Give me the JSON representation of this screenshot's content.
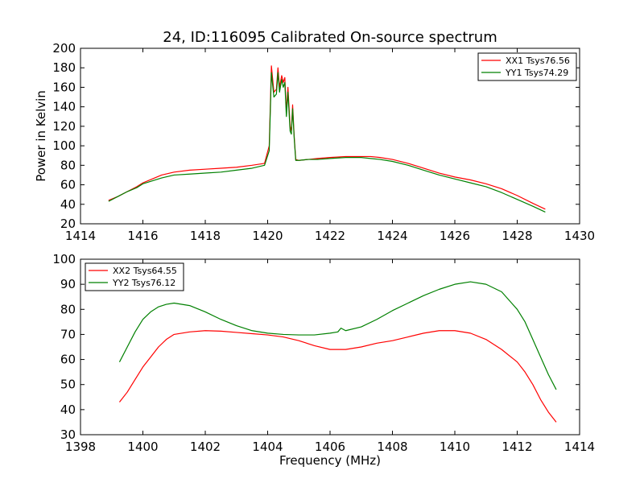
{
  "chart_data": [
    {
      "type": "line",
      "title": "24, ID:116095 Calibrated On-source spectrum",
      "xlabel": "",
      "ylabel": "Power in Kelvin",
      "xlim": [
        1414,
        1430
      ],
      "ylim": [
        20,
        200
      ],
      "xticks": [
        1414,
        1416,
        1418,
        1420,
        1422,
        1424,
        1426,
        1428,
        1430
      ],
      "yticks": [
        20,
        40,
        60,
        80,
        100,
        120,
        140,
        160,
        180,
        200
      ],
      "grid": false,
      "legend_position": "top-right",
      "series": [
        {
          "name": "XX1 Tsys76.56",
          "color": "#ff0000",
          "x": [
            1414.9,
            1415.2,
            1415.5,
            1415.8,
            1416.0,
            1416.3,
            1416.6,
            1417.0,
            1417.5,
            1418.0,
            1418.5,
            1419.0,
            1419.5,
            1419.9,
            1420.05,
            1420.12,
            1420.2,
            1420.28,
            1420.33,
            1420.38,
            1420.45,
            1420.5,
            1420.55,
            1420.6,
            1420.65,
            1420.72,
            1420.76,
            1420.8,
            1420.85,
            1420.9,
            1421.0,
            1421.3,
            1421.6,
            1422.0,
            1422.5,
            1423.0,
            1423.3,
            1423.6,
            1424.0,
            1424.5,
            1425.0,
            1425.5,
            1426.0,
            1426.5,
            1427.0,
            1427.5,
            1428.0,
            1428.5,
            1428.9
          ],
          "y": [
            44,
            48,
            53,
            58,
            62,
            66,
            70,
            73,
            75,
            76,
            77,
            78,
            80,
            82,
            100,
            182,
            155,
            158,
            180,
            160,
            172,
            165,
            170,
            135,
            160,
            120,
            115,
            142,
            110,
            86,
            85,
            86,
            87,
            88,
            89,
            89,
            89,
            88,
            86,
            82,
            77,
            72,
            68,
            65,
            61,
            56,
            49,
            41,
            35
          ]
        },
        {
          "name": "YY1 Tsys74.29",
          "color": "#008000",
          "x": [
            1414.9,
            1415.2,
            1415.5,
            1415.8,
            1416.0,
            1416.3,
            1416.6,
            1417.0,
            1417.5,
            1418.0,
            1418.5,
            1419.0,
            1419.5,
            1419.9,
            1420.05,
            1420.12,
            1420.2,
            1420.28,
            1420.33,
            1420.38,
            1420.45,
            1420.5,
            1420.55,
            1420.6,
            1420.65,
            1420.72,
            1420.76,
            1420.8,
            1420.85,
            1420.9,
            1421.0,
            1421.3,
            1421.6,
            1422.0,
            1422.5,
            1423.0,
            1423.3,
            1423.6,
            1424.0,
            1424.5,
            1425.0,
            1425.5,
            1426.0,
            1426.5,
            1427.0,
            1427.5,
            1428.0,
            1428.5,
            1428.9
          ],
          "y": [
            43,
            48,
            53,
            57,
            61,
            64,
            67,
            70,
            71,
            72,
            73,
            75,
            77,
            80,
            95,
            175,
            150,
            153,
            175,
            155,
            168,
            160,
            165,
            130,
            155,
            115,
            112,
            138,
            108,
            85,
            85,
            86,
            86,
            87,
            88,
            88,
            87,
            86,
            84,
            80,
            75,
            70,
            66,
            62,
            58,
            52,
            45,
            38,
            32
          ]
        }
      ]
    },
    {
      "type": "line",
      "title": "",
      "xlabel": "Frequency (MHz)",
      "ylabel": "",
      "xlim": [
        1398,
        1414
      ],
      "ylim": [
        30,
        100
      ],
      "xticks": [
        1398,
        1400,
        1402,
        1404,
        1406,
        1408,
        1410,
        1412,
        1414
      ],
      "yticks": [
        30,
        40,
        50,
        60,
        70,
        80,
        90,
        100
      ],
      "grid": false,
      "legend_position": "top-left",
      "series": [
        {
          "name": "XX2 Tsys64.55",
          "color": "#ff0000",
          "x": [
            1399.25,
            1399.5,
            1399.75,
            1400.0,
            1400.25,
            1400.5,
            1400.75,
            1401.0,
            1401.5,
            1402.0,
            1402.5,
            1403.0,
            1403.5,
            1404.0,
            1404.5,
            1405.0,
            1405.5,
            1406.0,
            1406.5,
            1407.0,
            1407.5,
            1408.0,
            1408.5,
            1409.0,
            1409.5,
            1410.0,
            1410.5,
            1411.0,
            1411.5,
            1412.0,
            1412.25,
            1412.5,
            1412.75,
            1413.0,
            1413.25
          ],
          "y": [
            43,
            47,
            52,
            57,
            61,
            65,
            68,
            70,
            71,
            71.5,
            71.3,
            70.8,
            70.3,
            69.8,
            69,
            67.5,
            65.5,
            64,
            64,
            65,
            66.5,
            67.5,
            69,
            70.5,
            71.5,
            71.5,
            70.5,
            68,
            64,
            59,
            55,
            50,
            44,
            39,
            35
          ]
        },
        {
          "name": "YY2 Tsys76.12",
          "color": "#008000",
          "x": [
            1399.25,
            1399.5,
            1399.75,
            1400.0,
            1400.25,
            1400.5,
            1400.75,
            1401.0,
            1401.5,
            1402.0,
            1402.5,
            1403.0,
            1403.5,
            1404.0,
            1404.5,
            1405.0,
            1405.5,
            1406.0,
            1406.25,
            1406.35,
            1406.5,
            1407.0,
            1407.5,
            1408.0,
            1408.5,
            1409.0,
            1409.5,
            1410.0,
            1410.5,
            1411.0,
            1411.5,
            1412.0,
            1412.25,
            1412.5,
            1412.75,
            1413.0,
            1413.25
          ],
          "y": [
            59,
            65,
            71,
            76,
            79,
            81,
            82,
            82.5,
            81.5,
            79,
            76,
            73.5,
            71.5,
            70.5,
            70,
            69.8,
            69.8,
            70.5,
            71,
            72.5,
            71.5,
            73,
            76,
            79.5,
            82.5,
            85.5,
            88,
            90,
            91,
            90,
            87,
            80,
            75,
            68,
            61,
            54,
            48
          ]
        }
      ]
    }
  ]
}
